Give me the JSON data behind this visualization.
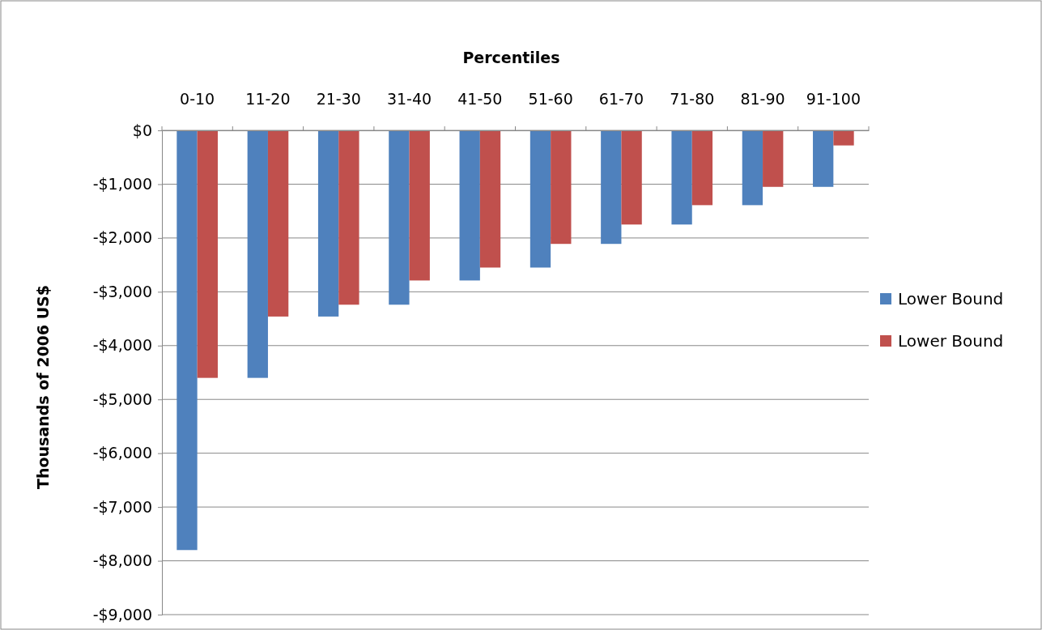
{
  "chart_data": {
    "type": "bar",
    "xlabel": "Percentiles",
    "ylabel": "Thousands of 2006 US$",
    "categories": [
      "0-10",
      "11-20",
      "21-30",
      "31-40",
      "41-50",
      "51-60",
      "61-70",
      "71-80",
      "81-90",
      "91-100"
    ],
    "series": [
      {
        "name": "Lower Bound",
        "color": "#4f81bd",
        "values": [
          -7800,
          -4600,
          -3460,
          -3240,
          -2790,
          -2550,
          -2110,
          -1750,
          -1390,
          -1050
        ]
      },
      {
        "name": "Lower Bound",
        "color": "#c0504d",
        "values": [
          -4600,
          -3460,
          -3240,
          -2790,
          -2550,
          -2110,
          -1750,
          -1390,
          -1050,
          -280
        ]
      }
    ],
    "ylim": [
      -9000,
      0
    ],
    "yticks": [
      {
        "value": 0,
        "label": "$0"
      },
      {
        "value": -1000,
        "label": "-$1,000"
      },
      {
        "value": -2000,
        "label": "-$2,000"
      },
      {
        "value": -3000,
        "label": "-$3,000"
      },
      {
        "value": -4000,
        "label": "-$4,000"
      },
      {
        "value": -5000,
        "label": "-$5,000"
      },
      {
        "value": -6000,
        "label": "-$6,000"
      },
      {
        "value": -7000,
        "label": "-$7,000"
      },
      {
        "value": -8000,
        "label": "-$8,000"
      },
      {
        "value": -9000,
        "label": "-$9,000"
      }
    ],
    "grid": "y",
    "legend": "right"
  }
}
